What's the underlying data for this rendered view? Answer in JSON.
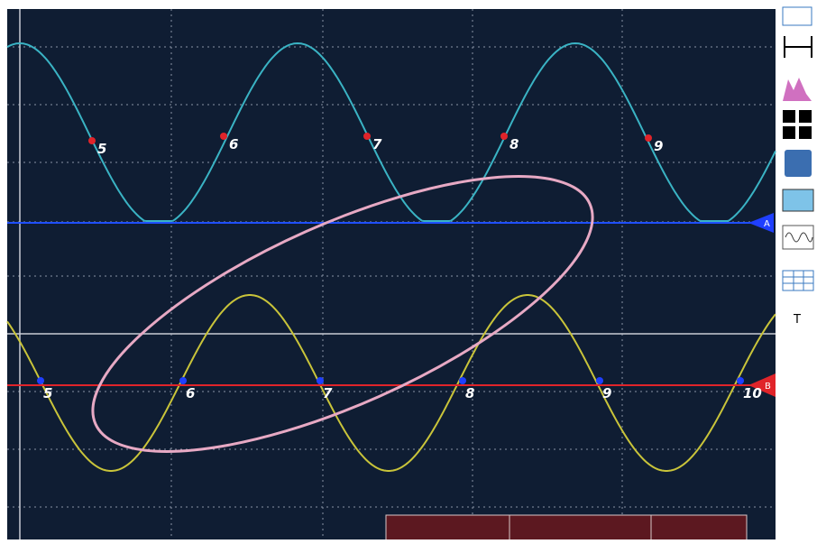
{
  "channel_a": {
    "label": "A",
    "markers": [
      "5",
      "6",
      "7",
      "8",
      "9"
    ]
  },
  "channel_b": {
    "label": "B",
    "markers": [
      "5",
      "6",
      "7",
      "8",
      "9",
      "10"
    ]
  },
  "toolbar": {
    "text": "T"
  }
}
